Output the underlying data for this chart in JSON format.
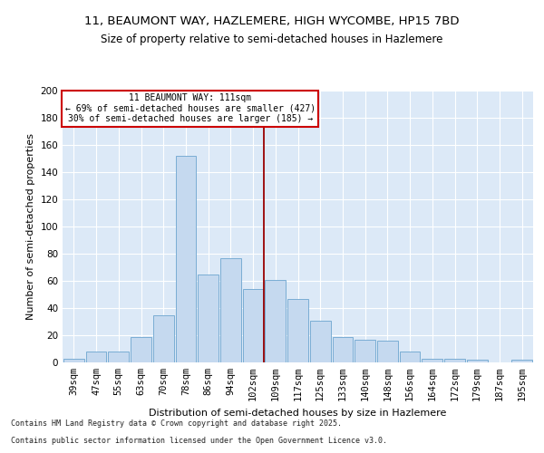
{
  "title_line1": "11, BEAUMONT WAY, HAZLEMERE, HIGH WYCOMBE, HP15 7BD",
  "title_line2": "Size of property relative to semi-detached houses in Hazlemere",
  "xlabel": "Distribution of semi-detached houses by size in Hazlemere",
  "ylabel": "Number of semi-detached properties",
  "categories": [
    "39sqm",
    "47sqm",
    "55sqm",
    "63sqm",
    "70sqm",
    "78sqm",
    "86sqm",
    "94sqm",
    "102sqm",
    "109sqm",
    "117sqm",
    "125sqm",
    "133sqm",
    "140sqm",
    "148sqm",
    "156sqm",
    "164sqm",
    "172sqm",
    "179sqm",
    "187sqm",
    "195sqm"
  ],
  "values": [
    3,
    8,
    8,
    19,
    35,
    152,
    65,
    77,
    54,
    61,
    47,
    31,
    19,
    17,
    16,
    8,
    3,
    3,
    2,
    0,
    2
  ],
  "bar_color": "#c5d9ef",
  "bar_edge_color": "#7aadd4",
  "red_line_color": "#990000",
  "annotation_line1": "11 BEAUMONT WAY: 111sqm",
  "annotation_line2": "← 69% of semi-detached houses are smaller (427)",
  "annotation_line3": "30% of semi-detached houses are larger (185) →",
  "annotation_box_color": "#ffffff",
  "annotation_box_edge_color": "#cc0000",
  "footer_line1": "Contains HM Land Registry data © Crown copyright and database right 2025.",
  "footer_line2": "Contains public sector information licensed under the Open Government Licence v3.0.",
  "ylim": [
    0,
    200
  ],
  "yticks": [
    0,
    20,
    40,
    60,
    80,
    100,
    120,
    140,
    160,
    180,
    200
  ],
  "bg_color": "#dce9f7",
  "fig_bg_color": "#ffffff",
  "grid_color": "#ffffff",
  "title_fontsize": 9.5,
  "subtitle_fontsize": 8.5,
  "axis_label_fontsize": 8,
  "tick_fontsize": 7.5,
  "footer_fontsize": 6,
  "annot_fontsize": 7
}
